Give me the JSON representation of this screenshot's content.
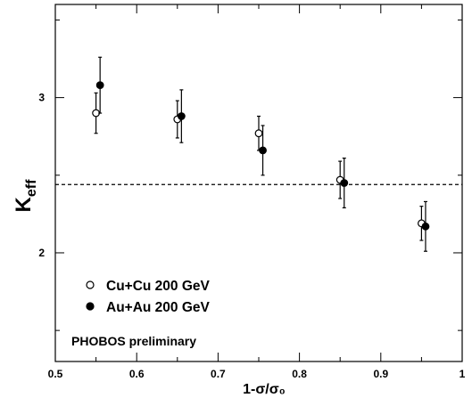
{
  "chart_data": {
    "type": "scatter",
    "xlabel": "1-σ/σ₀",
    "ylabel": "K_eff",
    "xlim": [
      0.5,
      1.0
    ],
    "ylim": [
      1.3,
      3.6
    ],
    "x_ticks": [
      "0.5",
      "0.6",
      "0.7",
      "0.8",
      "0.9",
      "1"
    ],
    "y_ticks": [
      "2",
      "3"
    ],
    "reference_line": {
      "y": 2.44,
      "style": "dashed"
    },
    "series": [
      {
        "name": "Cu+Cu 200 GeV",
        "marker": "open-circle",
        "points": [
          {
            "x": 0.55,
            "y": 2.9,
            "err": 0.13
          },
          {
            "x": 0.65,
            "y": 2.86,
            "err": 0.12
          },
          {
            "x": 0.75,
            "y": 2.77,
            "err": 0.11
          },
          {
            "x": 0.85,
            "y": 2.47,
            "err": 0.12
          },
          {
            "x": 0.95,
            "y": 2.19,
            "err": 0.11
          }
        ]
      },
      {
        "name": "Au+Au 200  GeV",
        "marker": "filled-circle",
        "points": [
          {
            "x": 0.555,
            "y": 3.08,
            "err": 0.18
          },
          {
            "x": 0.655,
            "y": 2.88,
            "err": 0.17
          },
          {
            "x": 0.755,
            "y": 2.66,
            "err": 0.16
          },
          {
            "x": 0.855,
            "y": 2.45,
            "err": 0.16
          },
          {
            "x": 0.955,
            "y": 2.17,
            "err": 0.16
          }
        ]
      }
    ],
    "annotation": "PHOBOS preliminary",
    "colors": {
      "axes": "#000000",
      "markers": "#000000",
      "background": "#ffffff"
    }
  }
}
